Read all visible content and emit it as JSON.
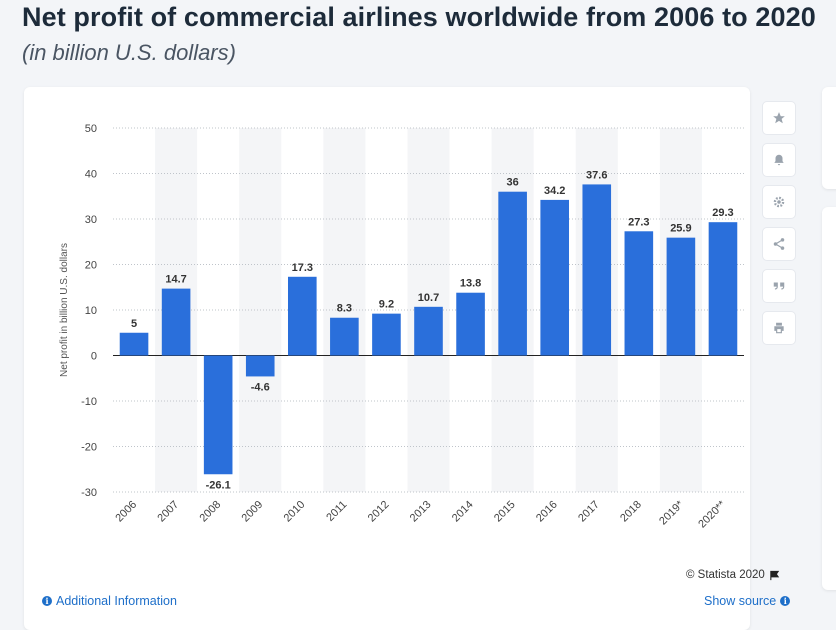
{
  "header": {
    "title": "Net profit of commercial airlines worldwide from 2006 to 2020",
    "subtitle": "(in billion U.S. dollars)"
  },
  "toolbar": {
    "icons": [
      "star-icon",
      "bell-icon",
      "gear-icon",
      "share-icon",
      "quote-icon",
      "print-icon"
    ]
  },
  "footer": {
    "additional_info": "Additional Information",
    "credit": "© Statista 2020",
    "show_source": "Show source"
  },
  "colors": {
    "bar": "#2a6fdb",
    "accent_link": "#1e6fc9",
    "title": "#1d2b3a"
  },
  "chart_data": {
    "type": "bar",
    "categories": [
      "2006",
      "2007",
      "2008",
      "2009",
      "2010",
      "2011",
      "2012",
      "2013",
      "2014",
      "2015",
      "2016",
      "2017",
      "2018",
      "2019*",
      "2020**"
    ],
    "values": [
      5,
      14.7,
      -26.1,
      -4.6,
      17.3,
      8.3,
      9.2,
      10.7,
      13.8,
      36,
      34.2,
      37.6,
      27.3,
      25.9,
      29.3
    ],
    "data_labels": [
      "5",
      "14.7",
      "-26.1",
      "-4.6",
      "17.3",
      "8.3",
      "9.2",
      "10.7",
      "13.8",
      "36",
      "34.2",
      "37.6",
      "27.3",
      "25.9",
      "29.3"
    ],
    "ylabel": "Net profit in billion U.S. dollars",
    "ylim": [
      -30,
      50
    ],
    "yticks": [
      50,
      40,
      30,
      20,
      10,
      0,
      -10,
      -20,
      -30
    ],
    "ytick_labels": [
      "50",
      "40",
      "30",
      "20",
      "10",
      "0",
      "-10",
      "-20",
      "-30"
    ],
    "grid": true,
    "legend": "none"
  }
}
